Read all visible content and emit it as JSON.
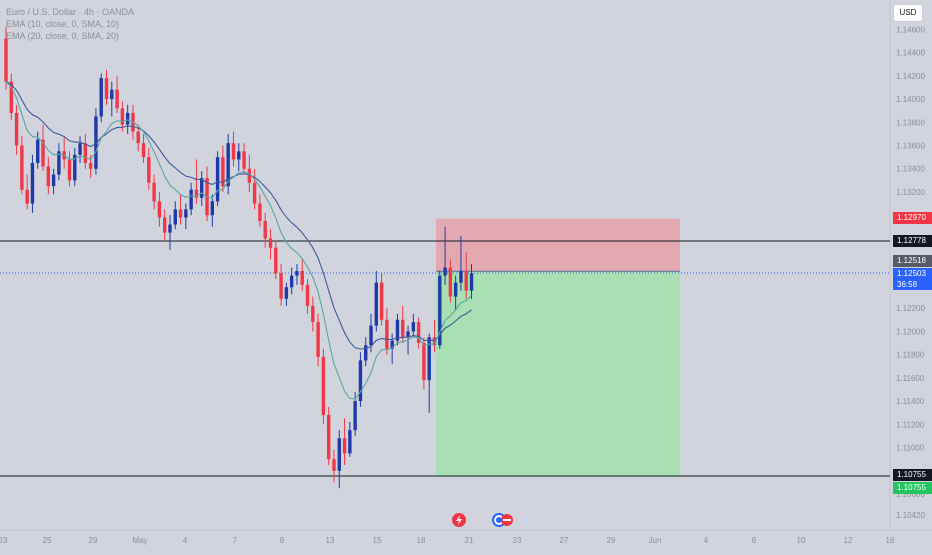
{
  "header": {
    "title": "Euro / U.S. Dollar · 4h · OANDA",
    "indicators": [
      "EMA (10, close, 0, SMA, 10)",
      "EMA (20, close, 0, SMA, 20)"
    ],
    "currency": "USD"
  },
  "colors": {
    "background": "#d1d4dc",
    "up_candle": "#1f3aa8",
    "down_candle": "#f23645",
    "ema_fast": "#5aa6a0",
    "ema_slow": "#3d5a9c",
    "stop_zone": "#e8a0a8",
    "target_zone": "#a5e0b0",
    "axis_text": "#8a8e99"
  },
  "price_tags": {
    "stop": "1.12970",
    "level_high": "1.12778",
    "entry": "1.12518",
    "current_price": "1.12503",
    "countdown": "36:58",
    "level_low": "1.10755",
    "target": "1.10755"
  },
  "position": {
    "type": "short",
    "entry": 1.12518,
    "stop": 1.1297,
    "target": 1.10755,
    "start_date": "May 19",
    "end_date": "Jun 1"
  },
  "chart_data": {
    "type": "candlestick",
    "title": "Euro / U.S. Dollar · 4h · OANDA",
    "x_ticks": [
      "23",
      "25",
      "29",
      "May",
      "4",
      "7",
      "9",
      "13",
      "15",
      "18",
      "21",
      "23",
      "27",
      "29",
      "Jun",
      "4",
      "6",
      "10",
      "12",
      "16"
    ],
    "y_ticks": [
      "1.14600",
      "1.14400",
      "1.14200",
      "1.14000",
      "1.13800",
      "1.13600",
      "1.13400",
      "1.13200",
      "1.12800",
      "1.12600",
      "1.12400",
      "1.12200",
      "1.12000",
      "1.11800",
      "1.11600",
      "1.11400",
      "1.11200",
      "1.11000",
      "1.10600",
      "1.10420"
    ],
    "horizontal_lines": [
      1.12778,
      1.10755
    ],
    "current_price": 1.12503,
    "series": [
      {
        "name": "EMA (10, close, 0, SMA, 10)",
        "kind": "line"
      },
      {
        "name": "EMA (20, close, 0, SMA, 20)",
        "kind": "line"
      }
    ],
    "candles": [
      [
        1.1452,
        1.1462,
        1.1408,
        1.1415
      ],
      [
        1.1415,
        1.1422,
        1.1382,
        1.1388
      ],
      [
        1.1388,
        1.1395,
        1.1352,
        1.136
      ],
      [
        1.136,
        1.1368,
        1.1318,
        1.1322
      ],
      [
        1.1322,
        1.1335,
        1.1305,
        1.131
      ],
      [
        1.131,
        1.1352,
        1.1302,
        1.1345
      ],
      [
        1.1345,
        1.1372,
        1.134,
        1.1365
      ],
      [
        1.1365,
        1.1378,
        1.1338,
        1.1342
      ],
      [
        1.1342,
        1.135,
        1.1318,
        1.1325
      ],
      [
        1.1325,
        1.134,
        1.1318,
        1.1335
      ],
      [
        1.1335,
        1.1362,
        1.133,
        1.1355
      ],
      [
        1.1355,
        1.1368,
        1.134,
        1.1348
      ],
      [
        1.1348,
        1.1355,
        1.1325,
        1.133
      ],
      [
        1.133,
        1.1358,
        1.1325,
        1.1352
      ],
      [
        1.1352,
        1.1368,
        1.1345,
        1.1362
      ],
      [
        1.1362,
        1.137,
        1.134,
        1.1345
      ],
      [
        1.1345,
        1.1352,
        1.1332,
        1.134
      ],
      [
        1.134,
        1.1392,
        1.1335,
        1.1385
      ],
      [
        1.1385,
        1.1422,
        1.138,
        1.1418
      ],
      [
        1.1418,
        1.1425,
        1.1395,
        1.14
      ],
      [
        1.14,
        1.1415,
        1.1385,
        1.1408
      ],
      [
        1.1408,
        1.142,
        1.1388,
        1.1392
      ],
      [
        1.1392,
        1.1398,
        1.1372,
        1.1378
      ],
      [
        1.1378,
        1.1395,
        1.137,
        1.1388
      ],
      [
        1.1388,
        1.1395,
        1.1365,
        1.1372
      ],
      [
        1.1372,
        1.1378,
        1.1355,
        1.1362
      ],
      [
        1.1362,
        1.137,
        1.1345,
        1.135
      ],
      [
        1.135,
        1.1358,
        1.1322,
        1.1328
      ],
      [
        1.1328,
        1.1335,
        1.1305,
        1.1312
      ],
      [
        1.1312,
        1.132,
        1.129,
        1.1298
      ],
      [
        1.1298,
        1.1305,
        1.1278,
        1.1285
      ],
      [
        1.1285,
        1.13,
        1.127,
        1.1292
      ],
      [
        1.1292,
        1.1312,
        1.1288,
        1.1305
      ],
      [
        1.1305,
        1.1318,
        1.1292,
        1.1298
      ],
      [
        1.1298,
        1.131,
        1.1288,
        1.1305
      ],
      [
        1.1305,
        1.1328,
        1.13,
        1.1322
      ],
      [
        1.1322,
        1.1348,
        1.131,
        1.1315
      ],
      [
        1.1315,
        1.1338,
        1.1308,
        1.1332
      ],
      [
        1.1332,
        1.1342,
        1.1295,
        1.13
      ],
      [
        1.13,
        1.1318,
        1.129,
        1.1312
      ],
      [
        1.1312,
        1.1355,
        1.1308,
        1.135
      ],
      [
        1.135,
        1.136,
        1.132,
        1.1325
      ],
      [
        1.1325,
        1.137,
        1.1318,
        1.1362
      ],
      [
        1.1362,
        1.1372,
        1.1342,
        1.1348
      ],
      [
        1.1348,
        1.1362,
        1.1338,
        1.1355
      ],
      [
        1.1355,
        1.1362,
        1.1335,
        1.134
      ],
      [
        1.134,
        1.1352,
        1.132,
        1.1328
      ],
      [
        1.1328,
        1.134,
        1.1305,
        1.131
      ],
      [
        1.131,
        1.1318,
        1.129,
        1.1295
      ],
      [
        1.1295,
        1.1302,
        1.1272,
        1.128
      ],
      [
        1.128,
        1.1288,
        1.1262,
        1.1272
      ],
      [
        1.1272,
        1.1278,
        1.1245,
        1.125
      ],
      [
        1.125,
        1.1258,
        1.1222,
        1.1228
      ],
      [
        1.1228,
        1.1242,
        1.1222,
        1.1238
      ],
      [
        1.1238,
        1.1255,
        1.1232,
        1.1248
      ],
      [
        1.1248,
        1.1258,
        1.124,
        1.1252
      ],
      [
        1.1252,
        1.1262,
        1.1235,
        1.124
      ],
      [
        1.124,
        1.1245,
        1.1215,
        1.1222
      ],
      [
        1.1222,
        1.123,
        1.12,
        1.1208
      ],
      [
        1.1208,
        1.1215,
        1.117,
        1.1178
      ],
      [
        1.1178,
        1.1185,
        1.112,
        1.1128
      ],
      [
        1.1128,
        1.1135,
        1.1085,
        1.109
      ],
      [
        1.109,
        1.1098,
        1.107,
        1.108
      ],
      [
        1.108,
        1.1115,
        1.1065,
        1.1108
      ],
      [
        1.1108,
        1.1125,
        1.1085,
        1.1095
      ],
      [
        1.1095,
        1.1122,
        1.1092,
        1.1115
      ],
      [
        1.1115,
        1.1148,
        1.111,
        1.114
      ],
      [
        1.114,
        1.1182,
        1.1135,
        1.1175
      ],
      [
        1.1175,
        1.1195,
        1.117,
        1.1188
      ],
      [
        1.1188,
        1.1215,
        1.1182,
        1.1205
      ],
      [
        1.1205,
        1.1252,
        1.12,
        1.1242
      ],
      [
        1.1242,
        1.125,
        1.1205,
        1.121
      ],
      [
        1.121,
        1.122,
        1.118,
        1.1185
      ],
      [
        1.1185,
        1.1198,
        1.1172,
        1.1192
      ],
      [
        1.1192,
        1.1215,
        1.1188,
        1.121
      ],
      [
        1.121,
        1.1222,
        1.119,
        1.1195
      ],
      [
        1.1195,
        1.1205,
        1.118,
        1.12
      ],
      [
        1.12,
        1.1215,
        1.1195,
        1.1208
      ],
      [
        1.1208,
        1.1212,
        1.1185,
        1.119
      ],
      [
        1.119,
        1.1195,
        1.115,
        1.1158
      ],
      [
        1.1158,
        1.1198,
        1.113,
        1.1195
      ],
      [
        1.1195,
        1.121,
        1.1182,
        1.1188
      ],
      [
        1.1188,
        1.1252,
        1.1185,
        1.1248
      ],
      [
        1.1248,
        1.129,
        1.124,
        1.1255
      ],
      [
        1.1255,
        1.1262,
        1.1225,
        1.123
      ],
      [
        1.123,
        1.1248,
        1.1218,
        1.1242
      ],
      [
        1.1242,
        1.1282,
        1.1235,
        1.1252
      ],
      [
        1.1252,
        1.1268,
        1.1228,
        1.1235
      ],
      [
        1.1235,
        1.1258,
        1.1228,
        1.125
      ]
    ]
  },
  "bottom_icons": [
    "flash-icon",
    "economic-calendar-icon"
  ]
}
